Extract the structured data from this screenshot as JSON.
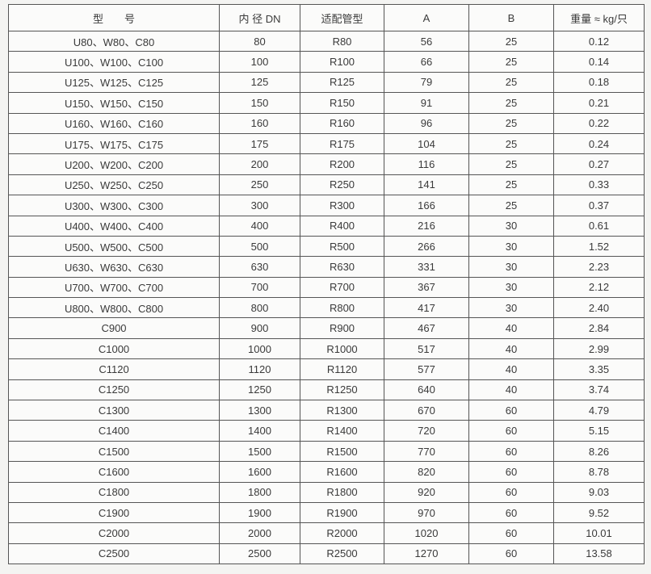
{
  "headers": [
    "型　　号",
    "内 径 DN",
    "适配管型",
    "A",
    "B",
    "重量 ≈ kg/只"
  ],
  "rows": [
    [
      "U80、W80、C80",
      "80",
      "R80",
      "56",
      "25",
      "0.12"
    ],
    [
      "U100、W100、C100",
      "100",
      "R100",
      "66",
      "25",
      "0.14"
    ],
    [
      "U125、W125、C125",
      "125",
      "R125",
      "79",
      "25",
      "0.18"
    ],
    [
      "U150、W150、C150",
      "150",
      "R150",
      "91",
      "25",
      "0.21"
    ],
    [
      "U160、W160、C160",
      "160",
      "R160",
      "96",
      "25",
      "0.22"
    ],
    [
      "U175、W175、C175",
      "175",
      "R175",
      "104",
      "25",
      "0.24"
    ],
    [
      "U200、W200、C200",
      "200",
      "R200",
      "116",
      "25",
      "0.27"
    ],
    [
      "U250、W250、C250",
      "250",
      "R250",
      "141",
      "25",
      "0.33"
    ],
    [
      "U300、W300、C300",
      "300",
      "R300",
      "166",
      "25",
      "0.37"
    ],
    [
      "U400、W400、C400",
      "400",
      "R400",
      "216",
      "30",
      "0.61"
    ],
    [
      "U500、W500、C500",
      "500",
      "R500",
      "266",
      "30",
      "1.52"
    ],
    [
      "U630、W630、C630",
      "630",
      "R630",
      "331",
      "30",
      "2.23"
    ],
    [
      "U700、W700、C700",
      "700",
      "R700",
      "367",
      "30",
      "2.12"
    ],
    [
      "U800、W800、C800",
      "800",
      "R800",
      "417",
      "30",
      "2.40"
    ],
    [
      "C900",
      "900",
      "R900",
      "467",
      "40",
      "2.84"
    ],
    [
      "C1000",
      "1000",
      "R1000",
      "517",
      "40",
      "2.99"
    ],
    [
      "C1120",
      "1120",
      "R1120",
      "577",
      "40",
      "3.35"
    ],
    [
      "C1250",
      "1250",
      "R1250",
      "640",
      "40",
      "3.74"
    ],
    [
      "C1300",
      "1300",
      "R1300",
      "670",
      "60",
      "4.79"
    ],
    [
      "C1400",
      "1400",
      "R1400",
      "720",
      "60",
      "5.15"
    ],
    [
      "C1500",
      "1500",
      "R1500",
      "770",
      "60",
      "8.26"
    ],
    [
      "C1600",
      "1600",
      "R1600",
      "820",
      "60",
      "8.78"
    ],
    [
      "C1800",
      "1800",
      "R1800",
      "920",
      "60",
      "9.03"
    ],
    [
      "C1900",
      "1900",
      "R1900",
      "970",
      "60",
      "9.52"
    ],
    [
      "C2000",
      "2000",
      "R2000",
      "1020",
      "60",
      "10.01"
    ],
    [
      "C2500",
      "2500",
      "R2500",
      "1270",
      "60",
      "13.58"
    ]
  ]
}
